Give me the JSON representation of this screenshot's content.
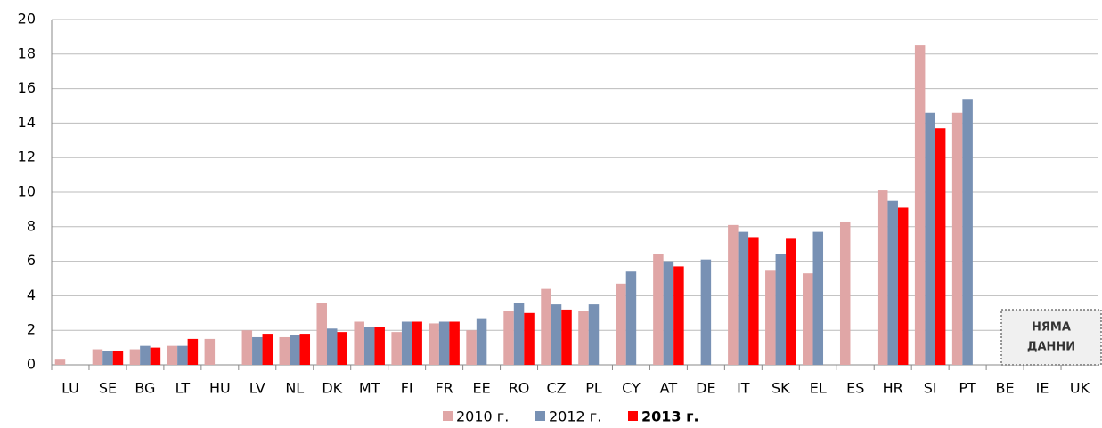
{
  "chart_data": {
    "type": "bar",
    "categories": [
      "LU",
      "SE",
      "BG",
      "LT",
      "HU",
      "LV",
      "NL",
      "DK",
      "MT",
      "FI",
      "FR",
      "EE",
      "RO",
      "CZ",
      "PL",
      "CY",
      "AT",
      "DE",
      "IT",
      "SK",
      "EL",
      "ES",
      "HR",
      "SI",
      "PT",
      "BE",
      "IE",
      "UK"
    ],
    "series": [
      {
        "name": "2010 г.",
        "color": "#e0a6a6",
        "values": [
          0.3,
          0.9,
          0.9,
          1.1,
          1.5,
          2.0,
          1.6,
          3.6,
          2.5,
          1.9,
          2.4,
          2.0,
          3.1,
          4.4,
          3.1,
          4.7,
          6.4,
          null,
          8.1,
          5.5,
          5.3,
          8.3,
          10.1,
          18.5,
          14.6,
          null,
          null,
          null
        ]
      },
      {
        "name": "2012 г.",
        "color": "#7891b4",
        "values": [
          null,
          0.8,
          1.1,
          1.1,
          null,
          1.6,
          1.7,
          2.1,
          2.2,
          2.5,
          2.5,
          2.7,
          3.6,
          3.5,
          3.5,
          5.4,
          6.0,
          6.1,
          7.7,
          6.4,
          7.7,
          null,
          9.5,
          14.6,
          15.4,
          null,
          null,
          null
        ]
      },
      {
        "name": "2013 г.",
        "color": "#ff0000",
        "values": [
          null,
          0.8,
          1.0,
          1.5,
          null,
          1.8,
          1.8,
          1.9,
          2.2,
          2.5,
          2.5,
          null,
          3.0,
          3.2,
          null,
          null,
          5.7,
          null,
          7.4,
          7.3,
          null,
          null,
          9.1,
          13.7,
          null,
          null,
          null,
          null
        ]
      }
    ],
    "annotation": [
      "НЯМА",
      "ДАННИ"
    ],
    "ylim": [
      0,
      20
    ],
    "yticks": [
      0,
      2,
      4,
      6,
      8,
      10,
      12,
      14,
      16,
      18,
      20
    ],
    "grid": true,
    "legend": "bottom"
  }
}
